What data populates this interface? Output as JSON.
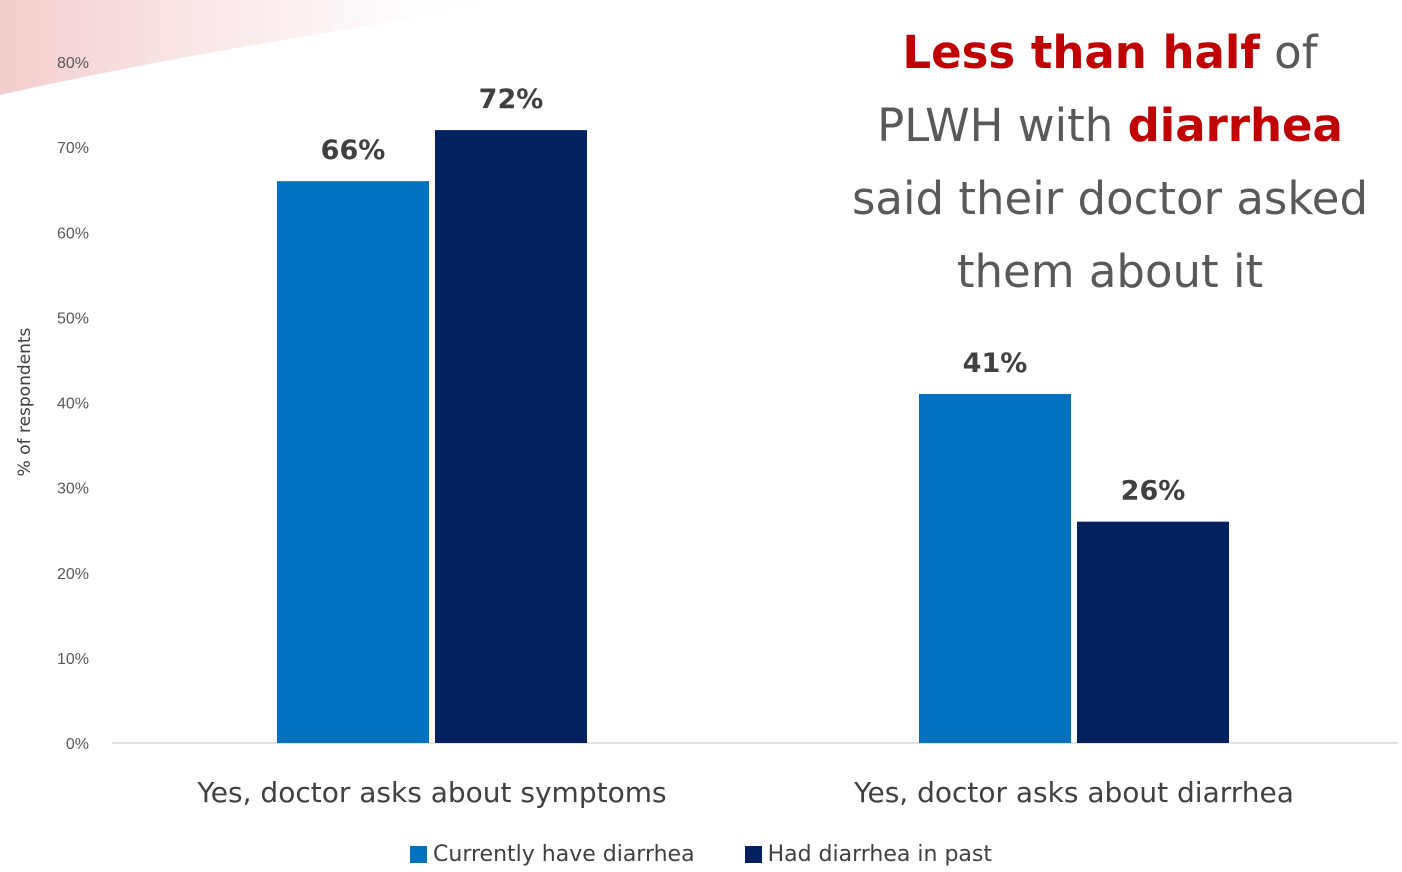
{
  "colors": {
    "current": "#0070c0",
    "past": "#002060",
    "emphasis": "#c00000",
    "text": "#595959"
  },
  "callout": {
    "part1": "Less than half",
    "part2": " of",
    "part3": "PLWH with ",
    "part4": "diarrhea",
    "part5": "said their doctor asked",
    "part6": "them about it"
  },
  "chart_data": {
    "type": "bar",
    "categories": [
      "Yes, doctor asks about symptoms",
      "Yes, doctor asks about diarrhea"
    ],
    "series": [
      {
        "name": "Currently have diarrhea",
        "values": [
          66,
          41
        ],
        "labels": [
          "66%",
          "41%"
        ]
      },
      {
        "name": "Had diarrhea in past",
        "values": [
          72,
          26
        ],
        "labels": [
          "72%",
          "26%"
        ]
      }
    ],
    "ylabel": "% of respondents",
    "xlabel": "",
    "ylim": [
      0,
      80
    ],
    "yticks": [
      "0%",
      "10%",
      "20%",
      "30%",
      "40%",
      "50%",
      "60%",
      "70%",
      "80%"
    ],
    "grid": false,
    "legend_position": "bottom"
  }
}
